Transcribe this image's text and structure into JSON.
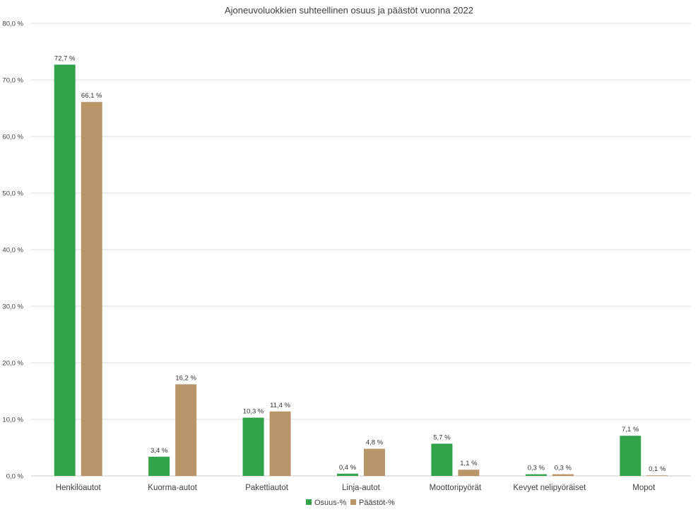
{
  "chart_data": {
    "type": "bar",
    "title": "Ajoneuvoluokkien suhteellinen osuus ja päästöt vuonna 2022",
    "categories": [
      "Henkilöautot",
      "Kuorma-autot",
      "Pakettiautot",
      "Linja-autot",
      "Moottoripyörät",
      "Kevyet nelipyöräiset",
      "Mopot"
    ],
    "series": [
      {
        "name": "Osuus-%",
        "color": "#33a34a",
        "values": [
          72.7,
          3.4,
          10.3,
          0.4,
          5.7,
          0.3,
          7.1
        ],
        "labels": [
          "72,7 %",
          "3,4 %",
          "10,3 %",
          "0,4 %",
          "5,7 %",
          "0,3 %",
          "7,1 %"
        ]
      },
      {
        "name": "Päästöt-%",
        "color": "#b8966a",
        "values": [
          66.1,
          16.2,
          11.4,
          4.8,
          1.1,
          0.3,
          0.1
        ],
        "labels": [
          "66,1 %",
          "16,2 %",
          "11,4 %",
          "4,8 %",
          "1,1 %",
          "0,3 %",
          "0,1 %"
        ]
      }
    ],
    "ylim": [
      0,
      80
    ],
    "yticks": [
      0,
      10,
      20,
      30,
      40,
      50,
      60,
      70,
      80
    ],
    "ytick_labels": [
      "0,0 %",
      "10,0 %",
      "20,0 %",
      "30,0 %",
      "40,0 %",
      "50,0 %",
      "60,0 %",
      "70,0 %",
      "80,0 %"
    ],
    "grid": true,
    "legend_position": "bottom"
  }
}
